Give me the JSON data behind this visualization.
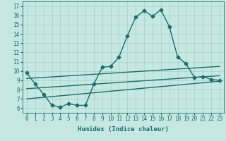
{
  "xlabel": "Humidex (Indice chaleur)",
  "xlim": [
    -0.5,
    23.5
  ],
  "ylim": [
    5.5,
    17.5
  ],
  "xticks": [
    0,
    1,
    2,
    3,
    4,
    5,
    6,
    7,
    8,
    9,
    10,
    11,
    12,
    13,
    14,
    15,
    16,
    17,
    18,
    19,
    20,
    21,
    22,
    23
  ],
  "yticks": [
    6,
    7,
    8,
    9,
    10,
    11,
    12,
    13,
    14,
    15,
    16,
    17
  ],
  "bg_color": "#c5e8e2",
  "grid_color": "#a8cfc8",
  "line_color": "#1a6e6a",
  "line1_x": [
    0,
    1,
    2,
    3,
    4,
    5,
    6,
    7,
    8,
    9,
    10,
    11,
    12,
    13,
    14,
    15,
    16,
    17,
    18,
    19,
    20,
    21,
    22,
    23
  ],
  "line1_y": [
    9.8,
    8.6,
    7.5,
    6.3,
    6.1,
    6.5,
    6.3,
    6.3,
    8.6,
    10.4,
    10.5,
    11.5,
    13.8,
    15.8,
    16.5,
    15.9,
    16.6,
    14.8,
    11.5,
    10.8,
    9.3,
    9.4,
    9.1,
    9.0
  ],
  "line2_x": [
    0,
    23
  ],
  "line2_y": [
    9.2,
    10.5
  ],
  "line3_x": [
    0,
    23
  ],
  "line3_y": [
    8.1,
    9.5
  ],
  "line4_x": [
    0,
    23
  ],
  "line4_y": [
    7.0,
    8.9
  ],
  "marker": "D",
  "markersize": 2.5,
  "linewidth": 1.0,
  "tick_fontsize": 5.5,
  "label_fontsize": 6.5
}
